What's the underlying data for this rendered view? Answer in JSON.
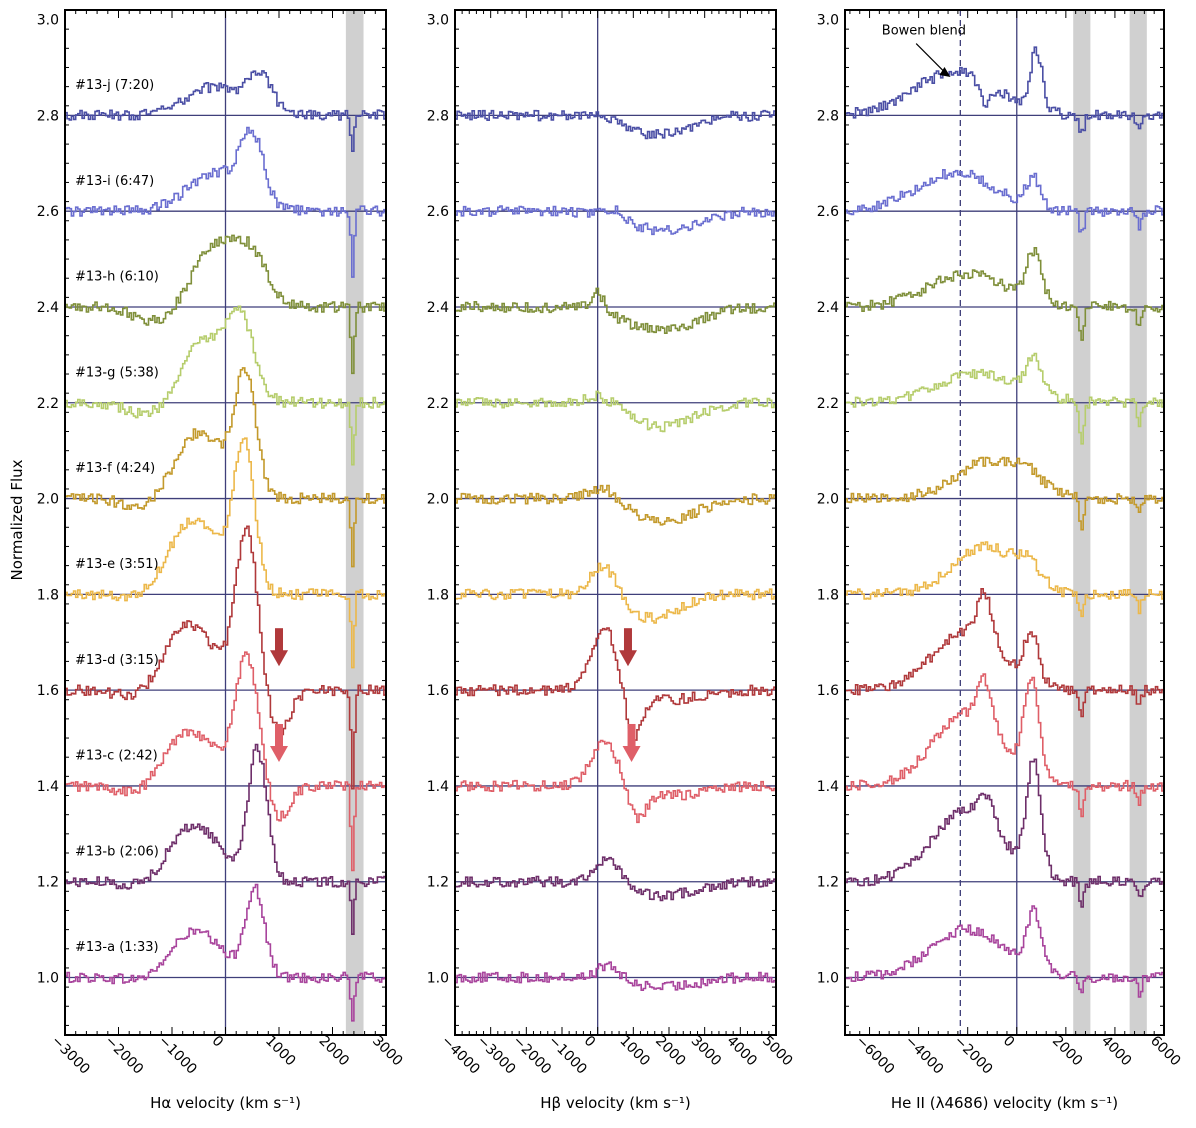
{
  "chart_data": {
    "type": "line",
    "ylabel": "Normalized Flux",
    "ylim": [
      0.88,
      3.02
    ],
    "yticks": [
      1.0,
      1.2,
      1.4,
      1.6,
      1.8,
      2.0,
      2.2,
      2.4,
      2.6,
      2.8,
      3.0
    ],
    "yticklabels": [
      "1.0",
      "1.2",
      "1.4",
      "1.6",
      "1.8",
      "2.0",
      "2.2",
      "2.4",
      "2.6",
      "2.8",
      "3.0"
    ],
    "spectra": [
      {
        "name": "#13-a (1:33)",
        "offset": 1.0,
        "color": "#a8449c"
      },
      {
        "name": "#13-b (2:06)",
        "offset": 1.2,
        "color": "#6e2f6a"
      },
      {
        "name": "#13-c (2:42)",
        "offset": 1.4,
        "color": "#df5f68"
      },
      {
        "name": "#13-d (3:15)",
        "offset": 1.6,
        "color": "#b0393b"
      },
      {
        "name": "#13-e (3:51)",
        "offset": 1.8,
        "color": "#ecb84a"
      },
      {
        "name": "#13-f  (4:24)",
        "offset": 2.0,
        "color": "#c39a2c"
      },
      {
        "name": "#13-g (5:38)",
        "offset": 2.2,
        "color": "#b6cd6c"
      },
      {
        "name": "#13-h (6:10)",
        "offset": 2.4,
        "color": "#7f8f3a"
      },
      {
        "name": "#13-i  (6:47)",
        "offset": 2.6,
        "color": "#6a6ed0"
      },
      {
        "name": "#13-j  (7:20)",
        "offset": 2.8,
        "color": "#4b4fa5"
      }
    ],
    "panels": [
      {
        "id": "halpha",
        "xlabel": "Hα velocity (km s⁻¹)",
        "xlim": [
          -3000,
          3000
        ],
        "xticks": [
          -3000,
          -2000,
          -1000,
          0,
          1000,
          2000,
          3000
        ],
        "xticklabels": [
          "−3000",
          "−2000",
          "−1000",
          "0",
          "1000",
          "2000",
          "3000"
        ],
        "bands": [
          [
            2250,
            2580
          ]
        ],
        "dashed_lines": [],
        "arrows": [
          {
            "spectrum": 3,
            "x": 1000
          },
          {
            "spectrum": 2,
            "x": 1000
          }
        ],
        "profiles": [
          {
            "components": [
              [
                -600,
                500,
                0.1
              ],
              [
                550,
                180,
                0.18
              ]
            ],
            "absorptions": [
              [
                2380,
                30,
                0.09
              ],
              [
                -1300,
                400,
                0.02
              ]
            ]
          },
          {
            "components": [
              [
                -600,
                500,
                0.12
              ],
              [
                600,
                180,
                0.27
              ]
            ],
            "absorptions": [
              [
                2380,
                30,
                0.1
              ],
              [
                -1400,
                400,
                0.02
              ]
            ]
          },
          {
            "components": [
              [
                -700,
                500,
                0.12
              ],
              [
                400,
                220,
                0.26
              ]
            ],
            "absorptions": [
              [
                1000,
                200,
                0.07
              ],
              [
                2380,
                30,
                0.18
              ],
              [
                -1500,
                400,
                0.03
              ]
            ]
          },
          {
            "components": [
              [
                -700,
                500,
                0.14
              ],
              [
                400,
                200,
                0.33
              ]
            ],
            "absorptions": [
              [
                1000,
                200,
                0.09
              ],
              [
                2380,
                30,
                0.2
              ],
              [
                -1500,
                400,
                0.03
              ]
            ]
          },
          {
            "components": [
              [
                -600,
                500,
                0.16
              ],
              [
                350,
                200,
                0.3
              ]
            ],
            "absorptions": [
              [
                2380,
                30,
                0.16
              ],
              [
                -1400,
                400,
                0.02
              ]
            ]
          },
          {
            "components": [
              [
                -500,
                500,
                0.14
              ],
              [
                380,
                200,
                0.24
              ]
            ],
            "absorptions": [
              [
                2380,
                30,
                0.14
              ],
              [
                -1400,
                400,
                0.03
              ]
            ]
          },
          {
            "components": [
              [
                -400,
                500,
                0.13
              ],
              [
                300,
                250,
                0.14
              ]
            ],
            "absorptions": [
              [
                2380,
                30,
                0.14
              ],
              [
                -1300,
                400,
                0.04
              ]
            ]
          },
          {
            "components": [
              [
                -200,
                400,
                0.13
              ],
              [
                500,
                300,
                0.1
              ]
            ],
            "absorptions": [
              [
                2380,
                30,
                0.14
              ],
              [
                -1300,
                400,
                0.03
              ]
            ]
          },
          {
            "components": [
              [
                -200,
                500,
                0.08
              ],
              [
                500,
                220,
                0.14
              ]
            ],
            "absorptions": [
              [
                2380,
                30,
                0.13
              ]
            ]
          },
          {
            "components": [
              [
                -200,
                500,
                0.06
              ],
              [
                650,
                220,
                0.08
              ]
            ],
            "absorptions": [
              [
                2380,
                30,
                0.08
              ]
            ]
          }
        ]
      },
      {
        "id": "hbeta",
        "xlabel": "Hβ velocity (km s⁻¹)",
        "xlim": [
          -4000,
          5000
        ],
        "xticks": [
          -4000,
          -3000,
          -2000,
          -1000,
          0,
          1000,
          2000,
          3000,
          4000,
          5000
        ],
        "xticklabels": [
          "−4000",
          "−3000",
          "−2000",
          "−1000",
          "0",
          "1000",
          "2000",
          "3000",
          "4000",
          "5000"
        ],
        "bands": [],
        "dashed_lines": [],
        "arrows": [
          {
            "spectrum": 3,
            "x": 850
          },
          {
            "spectrum": 2,
            "x": 950
          }
        ],
        "profiles": [
          {
            "components": [
              [
                300,
                300,
                0.03
              ]
            ],
            "absorptions": [
              [
                1800,
                900,
                0.02
              ]
            ]
          },
          {
            "components": [
              [
                300,
                400,
                0.05
              ]
            ],
            "absorptions": [
              [
                1800,
                900,
                0.03
              ]
            ]
          },
          {
            "components": [
              [
                200,
                400,
                0.09
              ]
            ],
            "absorptions": [
              [
                1100,
                250,
                0.06
              ],
              [
                2000,
                900,
                0.02
              ]
            ]
          },
          {
            "components": [
              [
                200,
                400,
                0.13
              ]
            ],
            "absorptions": [
              [
                1000,
                250,
                0.1
              ],
              [
                2000,
                900,
                0.02
              ]
            ]
          },
          {
            "components": [
              [
                200,
                400,
                0.07
              ]
            ],
            "absorptions": [
              [
                1500,
                800,
                0.05
              ]
            ]
          },
          {
            "components": [
              [
                200,
                400,
                0.03
              ]
            ],
            "absorptions": [
              [
                1800,
                900,
                0.05
              ]
            ]
          },
          {
            "components": [
              [
                100,
                400,
                0.02
              ]
            ],
            "absorptions": [
              [
                1800,
                900,
                0.05
              ]
            ]
          },
          {
            "components": [
              [
                0,
                200,
                0.04
              ]
            ],
            "absorptions": [
              [
                1800,
                1000,
                0.05
              ]
            ]
          },
          {
            "components": [
              [
                500,
                300,
                0.02
              ]
            ],
            "absorptions": [
              [
                1800,
                1000,
                0.04
              ]
            ]
          },
          {
            "components": [
              [
                0,
                300,
                0.01
              ]
            ],
            "absorptions": [
              [
                1700,
                900,
                0.04
              ]
            ]
          }
        ]
      },
      {
        "id": "heii",
        "xlabel": "He II (λ4686) velocity (km s⁻¹)",
        "xlim": [
          -7000,
          6000
        ],
        "xticks": [
          -6000,
          -4000,
          -2000,
          0,
          2000,
          4000,
          6000
        ],
        "xticklabels": [
          "−6000",
          "−4000",
          "−2000",
          "0",
          "2000",
          "4000",
          "6000"
        ],
        "bands": [
          [
            2300,
            3000
          ],
          [
            4600,
            5300
          ]
        ],
        "dashed_lines": [
          -2300
        ],
        "annotation": {
          "text": "Bowen blend",
          "x": -2700,
          "y": 2.88
        },
        "arrows": [],
        "profiles": [
          {
            "components": [
              [
                -2000,
                1500,
                0.1
              ],
              [
                700,
                300,
                0.12
              ]
            ],
            "absorptions": [
              [
                2650,
                100,
                0.03
              ],
              [
                5000,
                100,
                0.03
              ]
            ]
          },
          {
            "components": [
              [
                -2000,
                1400,
                0.15
              ],
              [
                700,
                300,
                0.23
              ],
              [
                -1200,
                300,
                0.05
              ]
            ],
            "absorptions": [
              [
                2650,
                100,
                0.05
              ],
              [
                5000,
                100,
                0.03
              ]
            ]
          },
          {
            "components": [
              [
                -2000,
                1400,
                0.15
              ],
              [
                600,
                300,
                0.2
              ],
              [
                -1300,
                300,
                0.09
              ]
            ],
            "absorptions": [
              [
                2650,
                100,
                0.06
              ],
              [
                5000,
                100,
                0.03
              ]
            ]
          },
          {
            "components": [
              [
                -2000,
                1400,
                0.12
              ],
              [
                600,
                300,
                0.1
              ],
              [
                -1300,
                300,
                0.1
              ]
            ],
            "absorptions": [
              [
                2650,
                100,
                0.05
              ],
              [
                5000,
                100,
                0.03
              ]
            ]
          },
          {
            "components": [
              [
                -1300,
                1300,
                0.1
              ],
              [
                500,
                500,
                0.04
              ]
            ],
            "absorptions": [
              [
                2650,
                100,
                0.04
              ],
              [
                5000,
                100,
                0.03
              ]
            ]
          },
          {
            "components": [
              [
                -1000,
                1400,
                0.08
              ],
              [
                500,
                500,
                0.02
              ]
            ],
            "absorptions": [
              [
                2650,
                100,
                0.06
              ],
              [
                5000,
                100,
                0.03
              ]
            ]
          },
          {
            "components": [
              [
                -1500,
                1700,
                0.06
              ],
              [
                700,
                300,
                0.07
              ]
            ],
            "absorptions": [
              [
                2650,
                100,
                0.08
              ],
              [
                5000,
                100,
                0.04
              ]
            ]
          },
          {
            "components": [
              [
                -2000,
                1600,
                0.07
              ],
              [
                700,
                300,
                0.1
              ]
            ],
            "absorptions": [
              [
                2650,
                100,
                0.06
              ],
              [
                5000,
                100,
                0.04
              ]
            ]
          },
          {
            "components": [
              [
                -2500,
                1600,
                0.08
              ],
              [
                700,
                300,
                0.06
              ]
            ],
            "absorptions": [
              [
                2650,
                100,
                0.05
              ],
              [
                5000,
                100,
                0.03
              ]
            ]
          },
          {
            "components": [
              [
                -2500,
                1700,
                0.09
              ],
              [
                800,
                250,
                0.12
              ],
              [
                -1300,
                200,
                -0.05
              ]
            ],
            "absorptions": [
              [
                2650,
                100,
                0.04
              ],
              [
                5000,
                100,
                0.03
              ]
            ]
          }
        ]
      }
    ]
  }
}
